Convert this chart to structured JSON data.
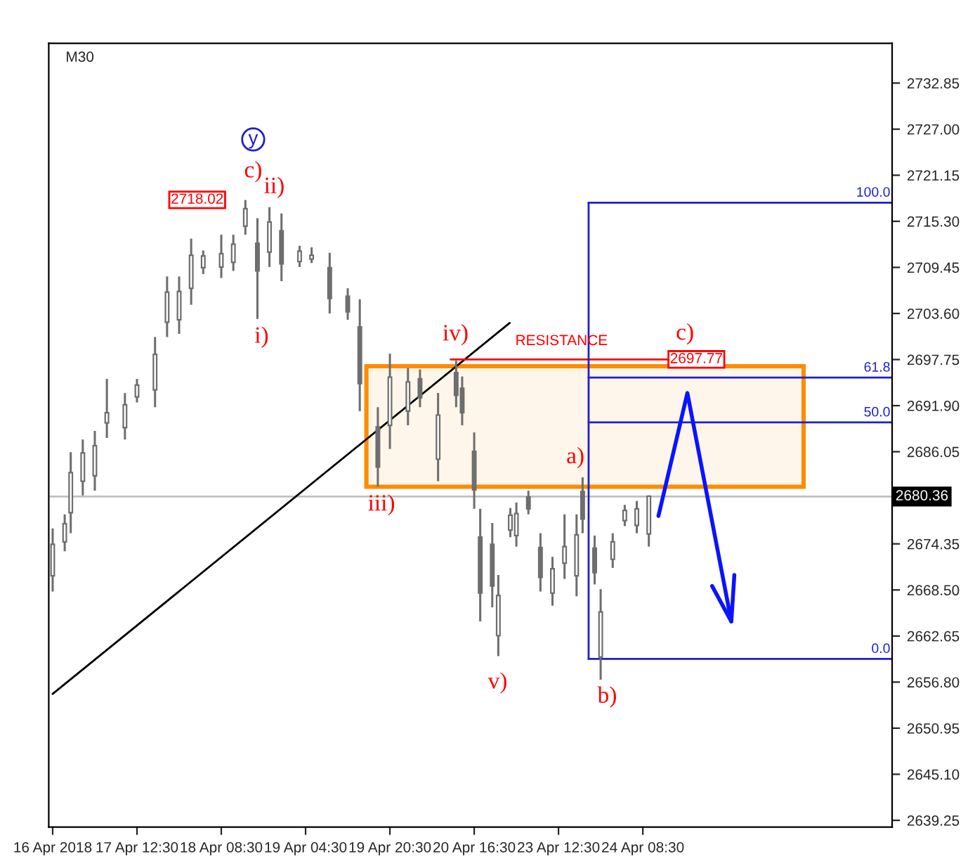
{
  "chart_data": {
    "type": "candlestick",
    "title": "M30",
    "categories": [
      "16 Apr 2018",
      null,
      null,
      null,
      null,
      null,
      null,
      null,
      null,
      null,
      null,
      null,
      null,
      null,
      "17 Apr 12:30",
      null,
      null,
      null,
      null,
      null,
      null,
      null,
      null,
      null,
      null,
      null,
      null,
      null,
      "18 Apr 08:30",
      null,
      null,
      null,
      null,
      null,
      null,
      null,
      null,
      null,
      null,
      null,
      null,
      null,
      "19 Apr 04:30",
      null,
      null,
      null,
      null,
      null,
      null,
      null,
      null,
      null,
      null,
      null,
      null,
      null,
      "19 Apr 20:30",
      null,
      null,
      null,
      null,
      null,
      null,
      null,
      null,
      null,
      null,
      null,
      null,
      null,
      "20 Apr 16:30",
      null,
      null,
      null,
      null,
      null,
      null,
      null,
      null,
      null,
      null,
      null,
      null,
      null,
      "23 Apr 12:30",
      null,
      null,
      null,
      null,
      null,
      null,
      null,
      null,
      null,
      null,
      null,
      null,
      null,
      "24 Apr 08:30",
      null,
      null,
      null,
      null,
      null,
      null,
      null,
      null,
      null,
      null,
      null,
      null,
      null,
      null,
      null,
      null,
      null,
      null,
      null,
      null,
      null,
      null,
      null,
      null,
      null,
      null,
      null,
      null,
      null,
      null,
      null,
      null,
      null,
      null,
      null,
      null,
      null,
      null,
      null,
      null,
      null
    ],
    "ohlc": [
      [
        2670.3,
        2676.3,
        2668.3,
        2674.3
      ],
      null,
      [
        2674.6,
        2678.1,
        2673.4,
        2676.9
      ],
      [
        2678.3,
        2686.0,
        2675.7,
        2683.4
      ],
      null,
      [
        2682.3,
        2687.6,
        2680.5,
        2685.9
      ],
      null,
      [
        2683.0,
        2688.7,
        2681.1,
        2686.8
      ],
      null,
      [
        2689.7,
        2695.3,
        2687.8,
        2691.0
      ],
      null,
      null,
      [
        2689.1,
        2693.5,
        2687.6,
        2692.0
      ],
      null,
      [
        2693.0,
        2695.3,
        2692.3,
        2694.5
      ],
      null,
      null,
      [
        2693.9,
        2700.6,
        2691.7,
        2698.4
      ],
      null,
      [
        2702.5,
        2708.3,
        2700.6,
        2706.3
      ],
      null,
      [
        2702.8,
        2708.3,
        2701.0,
        2706.4
      ],
      null,
      [
        2706.8,
        2713.1,
        2704.7,
        2711.0
      ],
      null,
      [
        2709.4,
        2711.6,
        2708.6,
        2710.9
      ],
      null,
      null,
      [
        2709.5,
        2713.6,
        2708.1,
        2711.2
      ],
      null,
      [
        2710.1,
        2713.6,
        2709.0,
        2712.4
      ],
      null,
      [
        2714.7,
        2718.0,
        2713.6,
        2716.9
      ],
      null,
      [
        2712.5,
        2715.7,
        2702.9,
        2709.0
      ],
      null,
      [
        2711.4,
        2717.1,
        2709.5,
        2715.2
      ],
      null,
      [
        2714.1,
        2716.3,
        2707.7,
        2709.9
      ],
      null,
      null,
      [
        2710.2,
        2712.2,
        2709.5,
        2711.5
      ],
      null,
      [
        2710.5,
        2712.0,
        2710.0,
        2711.0
      ],
      null,
      null,
      [
        2709.4,
        2711.3,
        2703.6,
        2705.5
      ],
      null,
      null,
      [
        2705.8,
        2706.8,
        2702.8,
        2703.8
      ],
      null,
      [
        2701.9,
        2705.4,
        2691.2,
        2694.7
      ],
      null,
      null,
      [
        2689.2,
        2691.7,
        2681.6,
        2684.1
      ],
      null,
      [
        2689.4,
        2698.5,
        2686.4,
        2695.5
      ],
      null,
      null,
      [
        2691.2,
        2696.7,
        2689.4,
        2694.9
      ],
      null,
      [
        2695.3,
        2696.5,
        2691.7,
        2692.9
      ],
      null,
      null,
      [
        2685.1,
        2693.5,
        2682.3,
        2690.7
      ],
      null,
      null,
      [
        2696.1,
        2697.6,
        2691.7,
        2693.2
      ],
      [
        2694.1,
        2695.6,
        2689.4,
        2691.0
      ],
      null,
      [
        2686.1,
        2688.5,
        2678.8,
        2681.2
      ],
      [
        2675.2,
        2678.8,
        2664.5,
        2668.1
      ],
      null,
      [
        2674.3,
        2677.0,
        2666.3,
        2669.0
      ],
      [
        2662.7,
        2670.4,
        2660.1,
        2667.8
      ],
      null,
      [
        2676.1,
        2678.9,
        2675.2,
        2678.0
      ],
      [
        2675.4,
        2679.6,
        2674.0,
        2678.2
      ],
      null,
      [
        2680.3,
        2681.1,
        2678.1,
        2678.8
      ],
      null,
      [
        2673.9,
        2675.7,
        2668.3,
        2670.1
      ],
      null,
      [
        2668.1,
        2672.7,
        2666.5,
        2671.2
      ],
      null,
      [
        2671.9,
        2678.1,
        2669.9,
        2674.0
      ],
      null,
      [
        2670.3,
        2678.1,
        2667.7,
        2675.5
      ],
      [
        2681.0,
        2682.8,
        2675.7,
        2677.5
      ],
      null,
      [
        2673.8,
        2675.4,
        2669.2,
        2670.7
      ],
      [
        2660.0,
        2668.6,
        2657.1,
        2665.7
      ],
      null,
      [
        2672.4,
        2675.7,
        2671.3,
        2674.6
      ],
      null,
      [
        2677.3,
        2679.3,
        2676.6,
        2678.6
      ],
      null,
      [
        2676.7,
        2679.8,
        2675.7,
        2678.8
      ],
      null,
      [
        2675.6,
        2680.5,
        2674.0,
        2680.4
      ],
      null,
      null,
      null,
      null,
      null,
      null,
      null,
      null,
      null,
      null,
      null,
      null,
      null,
      null,
      null,
      null,
      null,
      null,
      null,
      null,
      null,
      null,
      null,
      null,
      null,
      null,
      null,
      null,
      null,
      null,
      null,
      null,
      null,
      null,
      null,
      null,
      null,
      null,
      null,
      null
    ],
    "color": "#6e6e6e",
    "ylim": [
      2638.4,
      2737.9
    ],
    "yticks": [
      {
        "value": 2639.25,
        "label": "2639.25"
      },
      {
        "value": 2645.1,
        "label": "2645.10"
      },
      {
        "value": 2650.95,
        "label": "2650.95"
      },
      {
        "value": 2656.8,
        "label": "2656.80"
      },
      {
        "value": 2662.65,
        "label": "2662.65"
      },
      {
        "value": 2668.5,
        "label": "2668.50"
      },
      {
        "value": 2674.35,
        "label": "2674.35"
      },
      {
        "value": 2686.05,
        "label": "2686.05"
      },
      {
        "value": 2691.9,
        "label": "2691.90"
      },
      {
        "value": 2697.75,
        "label": "2697.75"
      },
      {
        "value": 2703.6,
        "label": "2703.60"
      },
      {
        "value": 2709.45,
        "label": "2709.45"
      },
      {
        "value": 2715.3,
        "label": "2715.30"
      },
      {
        "value": 2721.15,
        "label": "2721.15"
      },
      {
        "value": 2727.0,
        "label": "2727.00"
      },
      {
        "value": 2732.85,
        "label": "2732.85"
      }
    ],
    "ref_lines": [
      {
        "axis": "y",
        "value": 2680.36,
        "label": "2680.36",
        "color": "#c0c0c0"
      },
      {
        "axis": "y",
        "value": 2697.77,
        "label": "2697.77",
        "color": "#ff0000"
      },
      {
        "axis": "y",
        "value": 2717.67,
        "color": "#1f1fd0"
      },
      {
        "axis": "y",
        "value": 2695.46,
        "color": "#1f1fd0"
      },
      {
        "axis": "y",
        "value": 2689.77,
        "color": "#1f1fd0"
      },
      {
        "axis": "y",
        "value": 2659.74,
        "color": "#1f1fd0"
      }
    ],
    "bands": [
      {
        "axis": "y",
        "from": 2681.6,
        "to": 2696.9,
        "color": "#ff8c00"
      }
    ],
    "annotations": [
      "y",
      "c)",
      "ii)",
      "2718.02",
      "i)",
      "iv)",
      "RESISTANCE",
      "c)",
      "iii)",
      "a)",
      "v)",
      "b)",
      "100.0",
      "61.8",
      "50.0",
      "0.0"
    ],
    "grid": false
  }
}
